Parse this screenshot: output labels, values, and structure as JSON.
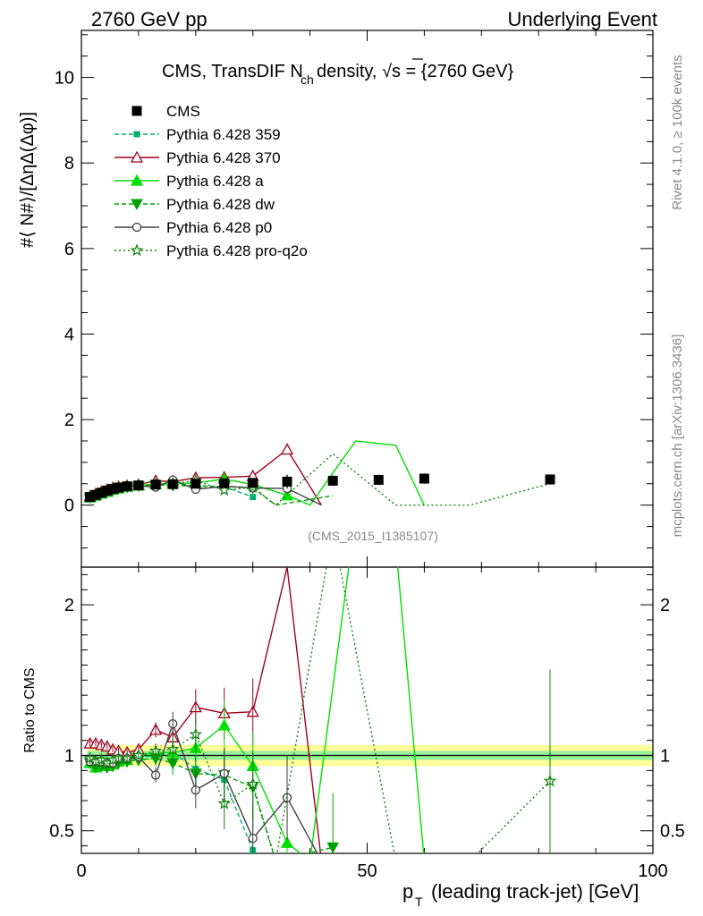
{
  "header": {
    "left": "2760 GeV pp",
    "right": "Underlying Event"
  },
  "side_text": {
    "rivet": "Rivet 4.1.0, ≥ 100k events",
    "mcplots": "mcplots.cern.ch [arXiv:1306.3436]"
  },
  "chart_data": {
    "type": "scatter",
    "title": "CMS, TransDIF N_ch density, √s = {2760 GeV}",
    "analysis_id": "(CMS_2015_I1385107)",
    "xlabel": "p_T (leading track-jet) [GeV]",
    "ylabel": "#⟨ N#⟩/[ΔηΔ(Δφ)]",
    "ratio_ylabel": "Ratio to CMS",
    "xlim": [
      0,
      100
    ],
    "ylim": [
      -1.45,
      11.1
    ],
    "ratio_ylim": [
      0.35,
      2.25
    ],
    "x_ticks": [
      "0",
      "50",
      "100"
    ],
    "y_ticks": [
      "0",
      "2",
      "4",
      "6",
      "8",
      "10"
    ],
    "ratio_ticks": [
      "0.5",
      "1",
      "2"
    ],
    "data": {
      "name": "CMS",
      "color": "#000000",
      "x": [
        1.5,
        2.5,
        3.5,
        4.5,
        5.5,
        6.5,
        8,
        10,
        13,
        16,
        20,
        25,
        30,
        36,
        44,
        52,
        60,
        82
      ],
      "y": [
        0.19,
        0.24,
        0.29,
        0.34,
        0.38,
        0.41,
        0.44,
        0.46,
        0.48,
        0.49,
        0.5,
        0.51,
        0.52,
        0.55,
        0.57,
        0.59,
        0.62,
        0.6
      ],
      "err": [
        0.01,
        0.01,
        0.01,
        0.01,
        0.01,
        0.01,
        0.02,
        0.02,
        0.02,
        0.03,
        0.04,
        0.05,
        0.06,
        0.08,
        0.06,
        0.06,
        0.06,
        0.06
      ]
    },
    "band": {
      "inner": 0.03,
      "outer": 0.07
    },
    "series": [
      {
        "name": "Pythia 6.428 359",
        "color": "#00b070",
        "dash": "5,3",
        "marker": "square",
        "x": [
          1.5,
          2.5,
          3.5,
          4.5,
          5.5,
          6.5,
          8,
          10,
          13,
          16,
          20,
          25,
          30
        ],
        "y": [
          0.185,
          0.235,
          0.285,
          0.325,
          0.365,
          0.395,
          0.425,
          0.455,
          0.48,
          0.5,
          0.455,
          0.43,
          0.19
        ],
        "ratio": [
          0.97,
          0.96,
          0.97,
          0.96,
          0.96,
          0.97,
          0.97,
          0.99,
          1.0,
          1.02,
          0.91,
          0.84,
          0.37
        ]
      },
      {
        "name": "Pythia 6.428 370",
        "color": "#a0001c",
        "dash": "",
        "marker": "triangle-open",
        "x": [
          1.5,
          2.5,
          3.5,
          4.5,
          5.5,
          6.5,
          8,
          10,
          13,
          16,
          20,
          25,
          30,
          36,
          42
        ],
        "y": [
          0.21,
          0.265,
          0.315,
          0.365,
          0.405,
          0.43,
          0.455,
          0.48,
          0.57,
          0.55,
          0.64,
          0.65,
          0.68,
          1.3,
          0.0
        ],
        "ratio": [
          1.08,
          1.08,
          1.07,
          1.06,
          1.04,
          1.03,
          1.02,
          1.04,
          1.17,
          1.12,
          1.32,
          1.28,
          1.29,
          2.25,
          0.3
        ]
      },
      {
        "name": "Pythia 6.428 a",
        "color": "#00e000",
        "dash": "",
        "marker": "triangle",
        "x": [
          1.5,
          2.5,
          3.5,
          4.5,
          5.5,
          6.5,
          8,
          10,
          13,
          16,
          20,
          25,
          30,
          36,
          40,
          48,
          55,
          60
        ],
        "y": [
          0.18,
          0.22,
          0.27,
          0.31,
          0.36,
          0.39,
          0.43,
          0.46,
          0.49,
          0.5,
          0.52,
          0.61,
          0.48,
          0.23,
          0.0,
          1.5,
          1.4,
          0.0
        ],
        "ratio": [
          0.95,
          0.92,
          0.93,
          0.93,
          0.94,
          0.96,
          0.97,
          1.0,
          1.02,
          1.02,
          1.05,
          1.2,
          0.93,
          0.42,
          0.3,
          2.6,
          2.4,
          0.3
        ]
      },
      {
        "name": "Pythia 6.428 dw",
        "color": "#00a000",
        "dash": "5,3",
        "marker": "triangle-down",
        "x": [
          1.5,
          2.5,
          3.5,
          4.5,
          5.5,
          6.5,
          8,
          10,
          13,
          16,
          20,
          25,
          30,
          34,
          44
        ],
        "y": [
          0.18,
          0.22,
          0.27,
          0.31,
          0.35,
          0.39,
          0.42,
          0.45,
          0.47,
          0.46,
          0.44,
          0.44,
          0.41,
          0.0,
          0.22
        ],
        "ratio": [
          0.95,
          0.92,
          0.93,
          0.92,
          0.93,
          0.95,
          0.96,
          0.97,
          0.98,
          0.95,
          0.88,
          0.87,
          0.79,
          0.3,
          0.39
        ]
      },
      {
        "name": "Pythia 6.428 p0",
        "color": "#404040",
        "dash": "",
        "marker": "circle-open",
        "x": [
          1.5,
          2.5,
          3.5,
          4.5,
          5.5,
          6.5,
          8,
          10,
          13,
          16,
          20,
          25,
          30,
          36,
          42
        ],
        "y": [
          0.18,
          0.23,
          0.28,
          0.32,
          0.36,
          0.4,
          0.43,
          0.45,
          0.42,
          0.59,
          0.37,
          0.44,
          0.4,
          0.39,
          0.0
        ],
        "ratio": [
          0.96,
          0.96,
          0.96,
          0.95,
          0.95,
          0.98,
          0.98,
          0.99,
          0.87,
          1.21,
          0.77,
          0.88,
          0.45,
          0.72,
          0.3
        ]
      },
      {
        "name": "Pythia 6.428 pro-q2o",
        "color": "#108010",
        "dash": "2,3",
        "marker": "star",
        "x": [
          1.5,
          2.5,
          3.5,
          4.5,
          5.5,
          6.5,
          8,
          10,
          13,
          16,
          20,
          25,
          30,
          34,
          44,
          55,
          68,
          82
        ],
        "y": [
          0.19,
          0.23,
          0.28,
          0.32,
          0.37,
          0.4,
          0.43,
          0.46,
          0.49,
          0.51,
          0.57,
          0.35,
          0.42,
          0.0,
          1.2,
          0.0,
          0.0,
          0.5
        ],
        "ratio": [
          0.98,
          0.96,
          0.97,
          0.95,
          0.97,
          0.98,
          0.98,
          1.0,
          1.03,
          1.04,
          1.14,
          0.68,
          0.81,
          0.3,
          2.5,
          0.3,
          0.3,
          0.83
        ]
      }
    ]
  }
}
